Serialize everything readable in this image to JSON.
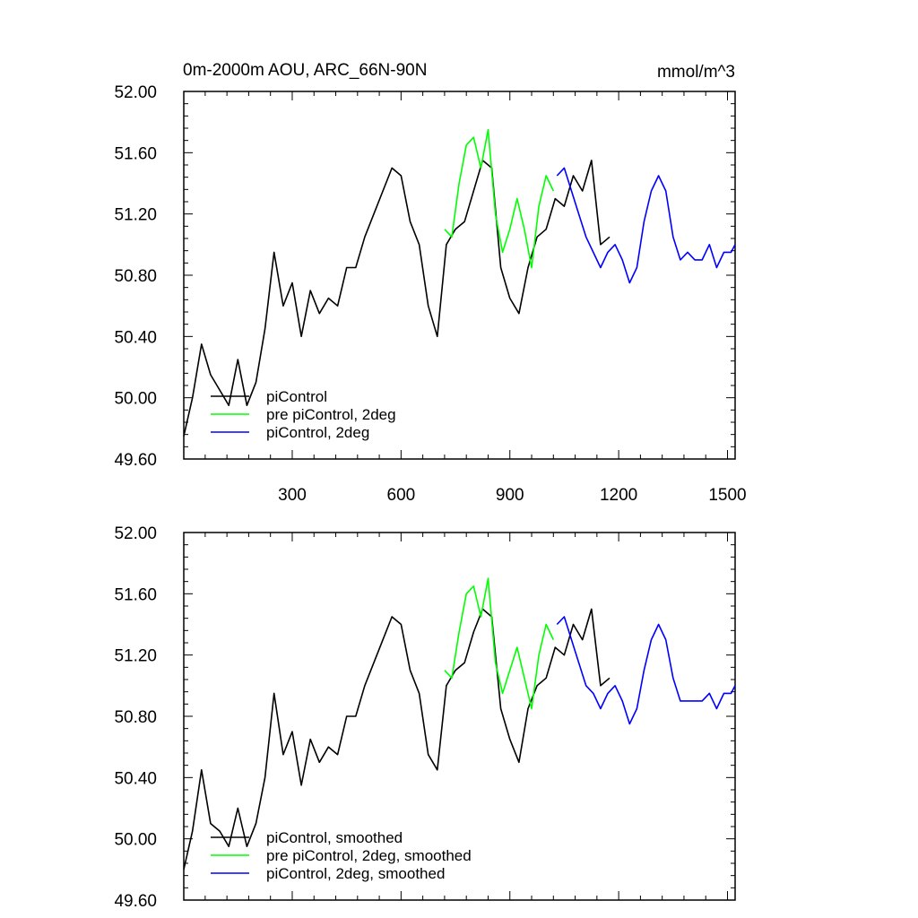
{
  "figure": {
    "background": "#ffffff"
  },
  "chart_data": [
    {
      "type": "line",
      "title": "0m-2000m AOU, ARC_66N-90N",
      "units": "mmol/m^3",
      "xlabel": "",
      "ylabel": "",
      "xlim": [
        1,
        1521
      ],
      "ylim": [
        49.6,
        52.0
      ],
      "x_ticks": [
        300,
        600,
        900,
        1200,
        1500
      ],
      "x_tick_labels": [
        "300",
        "600",
        "900",
        "1200",
        "1500"
      ],
      "y_ticks": [
        49.6,
        50.0,
        50.4,
        50.8,
        51.2,
        51.6,
        52.0
      ],
      "y_tick_labels": [
        "49.60",
        "50.00",
        "50.40",
        "50.80",
        "51.20",
        "51.60",
        "52.00"
      ],
      "legend_position": "bottom-left",
      "series": [
        {
          "name": "piControl",
          "color": "#000000",
          "x": [
            1,
            25,
            50,
            75,
            100,
            125,
            150,
            175,
            200,
            225,
            250,
            275,
            300,
            325,
            350,
            375,
            400,
            425,
            450,
            475,
            500,
            525,
            550,
            575,
            600,
            625,
            650,
            675,
            700,
            725,
            750,
            775,
            800,
            825,
            850,
            875,
            900,
            925,
            950,
            975,
            1000,
            1025,
            1050,
            1075,
            1100,
            1125,
            1150,
            1175
          ],
          "values": [
            49.75,
            50.0,
            50.35,
            50.15,
            50.05,
            49.95,
            50.25,
            49.95,
            50.1,
            50.45,
            50.95,
            50.6,
            50.75,
            50.4,
            50.7,
            50.55,
            50.65,
            50.6,
            50.85,
            50.85,
            51.05,
            51.2,
            51.35,
            51.5,
            51.45,
            51.15,
            51.0,
            50.6,
            50.4,
            51.0,
            51.1,
            51.15,
            51.35,
            51.55,
            51.5,
            50.85,
            50.65,
            50.55,
            50.85,
            51.05,
            51.1,
            51.3,
            51.25,
            51.45,
            51.35,
            51.55,
            51.0,
            51.05
          ]
        },
        {
          "name": "pre piControl, 2deg",
          "color": "#00ff00",
          "x": [
            720,
            740,
            760,
            780,
            800,
            820,
            840,
            860,
            880,
            900,
            920,
            940,
            960,
            980,
            1000,
            1020
          ],
          "values": [
            51.1,
            51.05,
            51.4,
            51.65,
            51.7,
            51.5,
            51.75,
            51.2,
            50.95,
            51.1,
            51.3,
            51.1,
            50.85,
            51.25,
            51.45,
            51.35
          ]
        },
        {
          "name": "piControl, 2deg",
          "color": "#0000ff",
          "x": [
            1030,
            1050,
            1070,
            1090,
            1110,
            1130,
            1150,
            1170,
            1190,
            1210,
            1230,
            1250,
            1270,
            1290,
            1310,
            1330,
            1350,
            1370,
            1390,
            1410,
            1430,
            1450,
            1470,
            1490,
            1510,
            1521
          ],
          "values": [
            51.45,
            51.5,
            51.35,
            51.2,
            51.05,
            50.95,
            50.85,
            50.95,
            51.0,
            50.9,
            50.75,
            50.85,
            51.15,
            51.35,
            51.45,
            51.35,
            51.05,
            50.9,
            50.95,
            50.9,
            50.9,
            51.0,
            50.85,
            50.95,
            50.95,
            51.0
          ]
        }
      ]
    },
    {
      "type": "line",
      "title": "",
      "xlabel": "",
      "ylabel": "",
      "xlim": [
        1,
        1521
      ],
      "ylim": [
        49.6,
        52.0
      ],
      "x_ticks": [
        300,
        600,
        900,
        1200,
        1500
      ],
      "y_ticks": [
        49.6,
        50.0,
        50.4,
        50.8,
        51.2,
        51.6,
        52.0
      ],
      "y_tick_labels": [
        "49.60",
        "50.00",
        "50.40",
        "50.80",
        "51.20",
        "51.60",
        "52.00"
      ],
      "legend_position": "bottom-left",
      "series": [
        {
          "name": "piControl, smoothed",
          "color": "#000000",
          "x": [
            1,
            25,
            50,
            75,
            100,
            125,
            150,
            175,
            200,
            225,
            250,
            275,
            300,
            325,
            350,
            375,
            400,
            425,
            450,
            475,
            500,
            525,
            550,
            575,
            600,
            625,
            650,
            675,
            700,
            725,
            750,
            775,
            800,
            825,
            850,
            875,
            900,
            925,
            950,
            975,
            1000,
            1025,
            1050,
            1075,
            1100,
            1125,
            1150,
            1175
          ],
          "values": [
            49.8,
            50.05,
            50.45,
            50.1,
            50.05,
            49.95,
            50.2,
            49.95,
            50.1,
            50.4,
            50.95,
            50.55,
            50.7,
            50.35,
            50.65,
            50.5,
            50.6,
            50.55,
            50.8,
            50.8,
            51.0,
            51.15,
            51.3,
            51.45,
            51.4,
            51.1,
            50.95,
            50.55,
            50.45,
            51.0,
            51.1,
            51.15,
            51.35,
            51.5,
            51.45,
            50.85,
            50.65,
            50.5,
            50.85,
            51.0,
            51.05,
            51.25,
            51.2,
            51.4,
            51.3,
            51.5,
            51.0,
            51.05
          ]
        },
        {
          "name": "pre piControl, 2deg, smoothed",
          "color": "#00ff00",
          "x": [
            720,
            740,
            760,
            780,
            800,
            820,
            840,
            860,
            880,
            900,
            920,
            940,
            960,
            980,
            1000,
            1020
          ],
          "values": [
            51.1,
            51.05,
            51.35,
            51.6,
            51.65,
            51.45,
            51.7,
            51.15,
            50.95,
            51.1,
            51.25,
            51.05,
            50.85,
            51.2,
            51.4,
            51.3
          ]
        },
        {
          "name": "piControl, 2deg, smoothed",
          "color": "#0000ff",
          "x": [
            1030,
            1050,
            1070,
            1090,
            1110,
            1130,
            1150,
            1170,
            1190,
            1210,
            1230,
            1250,
            1270,
            1290,
            1310,
            1330,
            1350,
            1370,
            1390,
            1410,
            1430,
            1450,
            1470,
            1490,
            1510,
            1521
          ],
          "values": [
            51.4,
            51.45,
            51.3,
            51.15,
            51.0,
            50.95,
            50.85,
            50.95,
            51.0,
            50.9,
            50.75,
            50.85,
            51.1,
            51.3,
            51.4,
            51.3,
            51.05,
            50.9,
            50.9,
            50.9,
            50.9,
            50.95,
            50.85,
            50.95,
            50.95,
            51.0
          ]
        }
      ]
    }
  ]
}
